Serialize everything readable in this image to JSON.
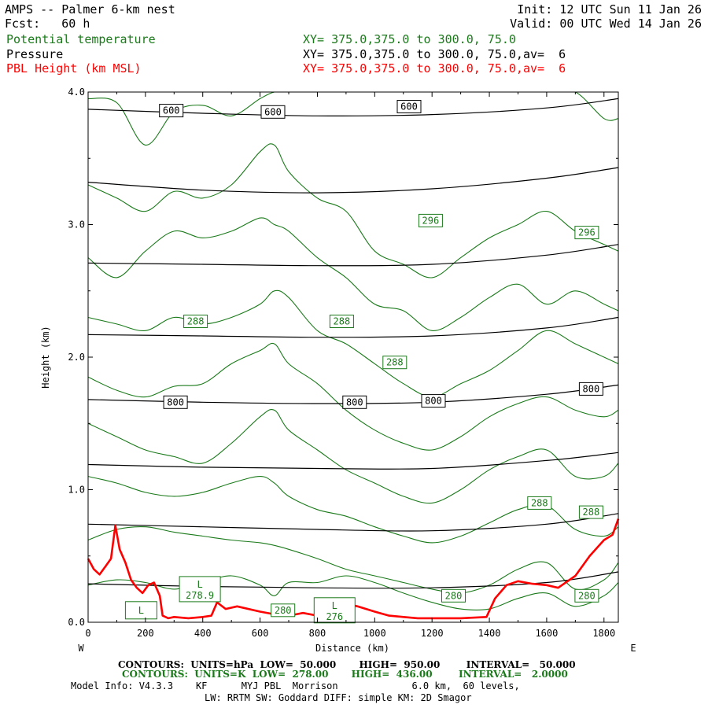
{
  "header": {
    "title": "AMPS -- Palmer 6-km nest",
    "fcst": "Fcst:   60 h",
    "init": "Init: 12 UTC Sun 11 Jan 26",
    "valid": "Valid: 00 UTC Wed 14 Jan 26",
    "field1": "Potential temperature",
    "field2": "Pressure",
    "field3": "PBL Height (km MSL)",
    "xy1": "XY= 375.0,375.0 to 300.0, 75.0",
    "xy2": "XY= 375.0,375.0 to 300.0, 75.0,av=  6",
    "xy3": "XY= 375.0,375.0 to 300.0, 75.0,av=  6"
  },
  "colors": {
    "theta": "#1a7a1a",
    "pressure": "#000000",
    "pbl": "#ff0000"
  },
  "chart_data": {
    "type": "line",
    "xlabel": "Distance (km)",
    "ylabel": "Height (km)",
    "xlim": [
      0,
      1850
    ],
    "ylim": [
      0,
      4.0
    ],
    "x_ticks": [
      "0",
      "200",
      "400",
      "600",
      "800",
      "1000",
      "1200",
      "1400",
      "1600",
      "1800"
    ],
    "y_ticks": [
      "0.0",
      "1.0",
      "2.0",
      "3.0",
      "4.0"
    ],
    "west_label": "W",
    "east_label": "E",
    "pressure_contours": [
      {
        "label": "600",
        "x": [
          0,
          400,
          800,
          1200,
          1600,
          1850
        ],
        "y": [
          3.87,
          3.84,
          3.82,
          3.83,
          3.88,
          3.95
        ]
      },
      {
        "label": "",
        "x": [
          0,
          400,
          800,
          1200,
          1600,
          1850
        ],
        "y": [
          3.32,
          3.26,
          3.24,
          3.27,
          3.35,
          3.43
        ]
      },
      {
        "label": "",
        "x": [
          0,
          400,
          800,
          1200,
          1600,
          1850
        ],
        "y": [
          2.71,
          2.7,
          2.69,
          2.7,
          2.77,
          2.85
        ]
      },
      {
        "label": "",
        "x": [
          0,
          400,
          800,
          1200,
          1600,
          1850
        ],
        "y": [
          2.17,
          2.16,
          2.15,
          2.16,
          2.22,
          2.3
        ]
      },
      {
        "label": "800",
        "x": [
          0,
          400,
          800,
          1200,
          1600,
          1850
        ],
        "y": [
          1.68,
          1.66,
          1.65,
          1.66,
          1.72,
          1.79
        ]
      },
      {
        "label": "",
        "x": [
          0,
          400,
          800,
          1200,
          1600,
          1850
        ],
        "y": [
          1.19,
          1.17,
          1.16,
          1.16,
          1.22,
          1.28
        ]
      },
      {
        "label": "",
        "x": [
          0,
          400,
          800,
          1200,
          1600,
          1850
        ],
        "y": [
          0.74,
          0.72,
          0.7,
          0.69,
          0.74,
          0.82
        ]
      },
      {
        "label": "",
        "x": [
          0,
          400,
          800,
          1200,
          1600,
          1850
        ],
        "y": [
          0.29,
          0.27,
          0.26,
          0.26,
          0.3,
          0.38
        ]
      }
    ],
    "pressure_labels": [
      {
        "text": "600",
        "x": 290,
        "y": 3.86
      },
      {
        "text": "600",
        "x": 645,
        "y": 3.85
      },
      {
        "text": "600",
        "x": 1120,
        "y": 3.89
      },
      {
        "text": "800",
        "x": 305,
        "y": 1.66
      },
      {
        "text": "800",
        "x": 930,
        "y": 1.66
      },
      {
        "text": "800",
        "x": 1205,
        "y": 1.67
      },
      {
        "text": "800",
        "x": 1755,
        "y": 1.76
      }
    ],
    "theta_contours": [
      {
        "x": [
          0,
          100,
          200,
          300,
          400,
          500,
          600,
          650,
          700,
          800,
          900,
          1000,
          1100,
          1200,
          1300,
          1400,
          1500,
          1600,
          1700,
          1800,
          1850
        ],
        "y": [
          3.95,
          3.92,
          3.6,
          3.85,
          3.9,
          3.82,
          3.95,
          4.0,
          4.0,
          4.0,
          4.0,
          4.0,
          4.0,
          4.0,
          4.0,
          4.0,
          4.0,
          4.0,
          4.0,
          3.8,
          3.8
        ]
      },
      {
        "x": [
          0,
          100,
          200,
          300,
          400,
          500,
          600,
          650,
          700,
          800,
          900,
          1000,
          1100,
          1200,
          1300,
          1400,
          1500,
          1600,
          1700,
          1800,
          1850
        ],
        "y": [
          3.3,
          3.2,
          3.1,
          3.25,
          3.2,
          3.3,
          3.55,
          3.6,
          3.4,
          3.2,
          3.1,
          2.8,
          2.7,
          2.6,
          2.75,
          2.9,
          3.0,
          3.1,
          2.95,
          2.85,
          2.8
        ]
      },
      {
        "x": [
          0,
          100,
          200,
          300,
          400,
          500,
          600,
          650,
          700,
          800,
          900,
          1000,
          1100,
          1200,
          1300,
          1400,
          1500,
          1600,
          1700,
          1800,
          1850
        ],
        "y": [
          2.75,
          2.6,
          2.8,
          2.95,
          2.9,
          2.95,
          3.05,
          3.0,
          2.95,
          2.75,
          2.6,
          2.4,
          2.35,
          2.2,
          2.3,
          2.45,
          2.55,
          2.4,
          2.5,
          2.4,
          2.35
        ]
      },
      {
        "x": [
          0,
          100,
          200,
          300,
          400,
          500,
          600,
          650,
          700,
          800,
          900,
          1000,
          1100,
          1200,
          1300,
          1400,
          1500,
          1600,
          1700,
          1800,
          1850
        ],
        "y": [
          2.3,
          2.25,
          2.2,
          2.3,
          2.25,
          2.3,
          2.4,
          2.5,
          2.45,
          2.2,
          2.1,
          1.95,
          1.8,
          1.7,
          1.8,
          1.9,
          2.05,
          2.2,
          2.1,
          2.0,
          1.95
        ]
      },
      {
        "x": [
          0,
          100,
          200,
          300,
          400,
          500,
          600,
          650,
          700,
          800,
          900,
          1000,
          1100,
          1200,
          1300,
          1400,
          1500,
          1600,
          1700,
          1800,
          1850
        ],
        "y": [
          1.85,
          1.75,
          1.7,
          1.78,
          1.8,
          1.95,
          2.05,
          2.1,
          1.95,
          1.8,
          1.6,
          1.45,
          1.35,
          1.3,
          1.4,
          1.55,
          1.65,
          1.7,
          1.6,
          1.55,
          1.6
        ]
      },
      {
        "x": [
          0,
          100,
          200,
          300,
          400,
          500,
          600,
          650,
          700,
          800,
          900,
          1000,
          1100,
          1200,
          1300,
          1400,
          1500,
          1600,
          1700,
          1800,
          1850
        ],
        "y": [
          1.5,
          1.4,
          1.3,
          1.25,
          1.2,
          1.35,
          1.55,
          1.6,
          1.45,
          1.3,
          1.15,
          1.05,
          0.95,
          0.9,
          1.0,
          1.15,
          1.25,
          1.3,
          1.1,
          1.1,
          1.2
        ]
      },
      {
        "x": [
          0,
          100,
          200,
          300,
          400,
          500,
          600,
          650,
          700,
          800,
          900,
          1000,
          1100,
          1200,
          1300,
          1400,
          1500,
          1600,
          1700,
          1800,
          1850
        ],
        "y": [
          1.1,
          1.05,
          0.98,
          0.95,
          0.98,
          1.05,
          1.1,
          1.05,
          0.95,
          0.85,
          0.8,
          0.72,
          0.65,
          0.6,
          0.65,
          0.75,
          0.85,
          0.88,
          0.7,
          0.65,
          0.72
        ]
      },
      {
        "x": [
          0,
          100,
          200,
          300,
          400,
          500,
          600,
          650,
          700,
          800,
          900,
          1000,
          1100,
          1200,
          1300,
          1400,
          1500,
          1600,
          1700,
          1800,
          1850
        ],
        "y": [
          0.62,
          0.7,
          0.72,
          0.68,
          0.65,
          0.62,
          0.6,
          0.58,
          0.55,
          0.48,
          0.4,
          0.35,
          0.3,
          0.25,
          0.22,
          0.28,
          0.4,
          0.45,
          0.25,
          0.32,
          0.45
        ]
      },
      {
        "x": [
          0,
          100,
          200,
          300,
          400,
          500,
          600,
          650,
          700,
          800,
          900,
          1000,
          1100,
          1200,
          1300,
          1400,
          1500,
          1600,
          1700,
          1800,
          1850
        ],
        "y": [
          0.28,
          0.32,
          0.3,
          0.25,
          0.3,
          0.35,
          0.28,
          0.2,
          0.3,
          0.3,
          0.35,
          0.3,
          0.22,
          0.15,
          0.1,
          0.1,
          0.18,
          0.22,
          0.12,
          0.2,
          0.3
        ]
      }
    ],
    "theta_labels": [
      {
        "text": "296",
        "x": 1195,
        "y": 3.03
      },
      {
        "text": "296",
        "x": 1740,
        "y": 2.94
      },
      {
        "text": "288",
        "x": 375,
        "y": 2.27
      },
      {
        "text": "288",
        "x": 885,
        "y": 2.27
      },
      {
        "text": "288",
        "x": 1070,
        "y": 1.96
      },
      {
        "text": "288",
        "x": 1575,
        "y": 0.9
      },
      {
        "text": "288",
        "x": 1755,
        "y": 0.83
      },
      {
        "text": "280",
        "x": 1275,
        "y": 0.2
      },
      {
        "text": "280",
        "x": 1740,
        "y": 0.2
      },
      {
        "text": "280",
        "x": 680,
        "y": 0.09
      }
    ],
    "low_labels": [
      {
        "text": "L",
        "value": "278.9",
        "x": 390,
        "y": 0.25
      },
      {
        "text": "L",
        "value": "",
        "x": 185,
        "y": 0.09
      },
      {
        "text": "L",
        "value": "276",
        "x": 860,
        "y": 0.09
      }
    ],
    "pbl_height": {
      "x": [
        0,
        20,
        40,
        60,
        80,
        95,
        110,
        130,
        150,
        170,
        190,
        210,
        230,
        250,
        260,
        280,
        300,
        350,
        400,
        430,
        450,
        480,
        520,
        600,
        650,
        700,
        750,
        800,
        840,
        870,
        900,
        940,
        1000,
        1050,
        1100,
        1150,
        1200,
        1300,
        1390,
        1420,
        1460,
        1500,
        1550,
        1600,
        1640,
        1700,
        1750,
        1800,
        1830,
        1850
      ],
      "y": [
        0.48,
        0.4,
        0.36,
        0.42,
        0.48,
        0.73,
        0.55,
        0.45,
        0.32,
        0.26,
        0.22,
        0.28,
        0.3,
        0.2,
        0.05,
        0.03,
        0.04,
        0.03,
        0.04,
        0.05,
        0.15,
        0.1,
        0.12,
        0.08,
        0.06,
        0.05,
        0.07,
        0.05,
        0.08,
        0.18,
        0.14,
        0.12,
        0.08,
        0.05,
        0.04,
        0.03,
        0.03,
        0.03,
        0.04,
        0.18,
        0.28,
        0.31,
        0.29,
        0.28,
        0.26,
        0.35,
        0.5,
        0.62,
        0.66,
        0.78
      ]
    }
  },
  "footer": {
    "line1": "CONTOURS:  UNITS=hPa  LOW=  50.000       HIGH=  950.00        INTERVAL=   50.000",
    "line2": "CONTOURS:  UNITS=K  LOW=  278.00       HIGH=  436.00        INTERVAL=   2.0000",
    "model_info": "Model Info: V4.3.3    KF      MYJ PBL  Morrison             6.0 km,  60 levels,",
    "physics": "LW: RRTM SW: Goddard DIFF: simple KM: 2D Smagor"
  }
}
